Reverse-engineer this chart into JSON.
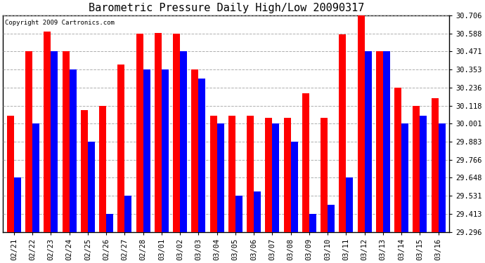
{
  "title": "Barometric Pressure Daily High/Low 20090317",
  "copyright": "Copyright 2009 Cartronics.com",
  "dates": [
    "02/21",
    "02/22",
    "02/23",
    "02/24",
    "02/25",
    "02/26",
    "02/27",
    "02/28",
    "03/01",
    "03/02",
    "03/03",
    "03/04",
    "03/05",
    "03/06",
    "03/07",
    "03/08",
    "03/09",
    "03/10",
    "03/11",
    "03/12",
    "03/13",
    "03/14",
    "03/15",
    "03/16"
  ],
  "high": [
    30.05,
    30.471,
    30.6,
    30.471,
    30.09,
    30.118,
    30.383,
    30.588,
    30.59,
    30.588,
    30.353,
    30.05,
    30.05,
    30.05,
    30.04,
    30.04,
    30.2,
    30.04,
    30.58,
    30.706,
    30.471,
    30.236,
    30.118,
    30.165
  ],
  "low": [
    29.648,
    30.001,
    30.471,
    30.353,
    29.883,
    29.413,
    29.531,
    30.353,
    30.353,
    30.471,
    30.295,
    30.001,
    29.531,
    29.56,
    30.001,
    29.883,
    29.413,
    29.472,
    29.648,
    30.471,
    30.471,
    30.001,
    30.05,
    30.001
  ],
  "yticks": [
    29.296,
    29.413,
    29.531,
    29.648,
    29.766,
    29.883,
    30.001,
    30.118,
    30.236,
    30.353,
    30.471,
    30.588,
    30.706
  ],
  "ymin": 29.296,
  "ymax": 30.706,
  "high_color": "#ff0000",
  "low_color": "#0000ff",
  "bg_color": "#ffffff",
  "grid_color": "#999999",
  "title_fontsize": 11,
  "tick_fontsize": 7.5,
  "copyright_fontsize": 6.5,
  "bar_width": 0.38
}
